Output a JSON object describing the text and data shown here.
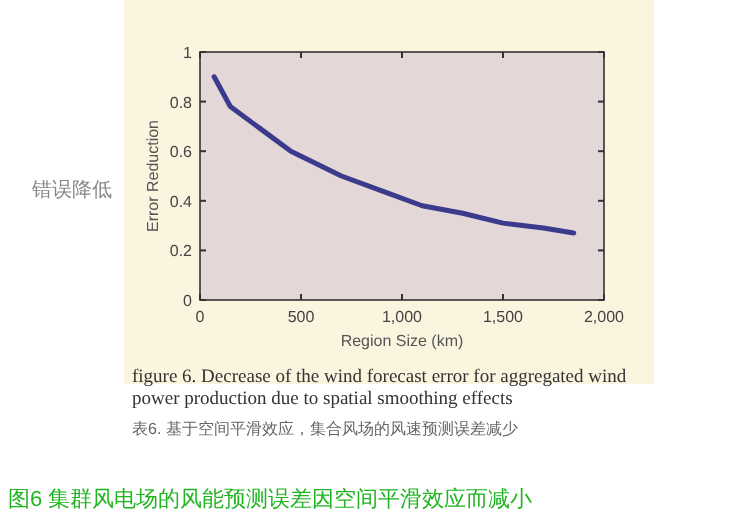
{
  "chart_data": {
    "type": "line",
    "xlabel": "Region Size (km)",
    "ylabel": "Error Reduction",
    "title": "figure 6. Decrease of the wind forecast error for aggregated wind power production due to spatial smoothing effects",
    "subtitle": "表6. 基于空间平滑效应，集合风场的风速预测误差减少",
    "annotations": [
      "图6 集群风电场的风能预测误差因空间平滑效应而减小",
      "错误降低"
    ],
    "x": [
      70,
      150,
      300,
      450,
      700,
      900,
      1100,
      1300,
      1500,
      1700,
      1850
    ],
    "series": [
      {
        "color": "#3b3a8c",
        "values": [
          0.9,
          0.78,
          0.69,
          0.6,
          0.5,
          0.44,
          0.38,
          0.35,
          0.31,
          0.29,
          0.27
        ]
      }
    ],
    "xlim": [
      0,
      2000
    ],
    "xticks": [
      {
        "value": 0,
        "label": "0"
      },
      {
        "value": 500,
        "label": "500"
      },
      {
        "value": 1000,
        "label": "1,000"
      },
      {
        "value": 1500,
        "label": "1,500"
      },
      {
        "value": 2000,
        "label": "2,000"
      }
    ],
    "ylim": [
      0,
      1
    ],
    "yticks": [
      0,
      0.2,
      0.4,
      0.6,
      0.8,
      1
    ],
    "marker": "none",
    "line_style": "solid"
  }
}
